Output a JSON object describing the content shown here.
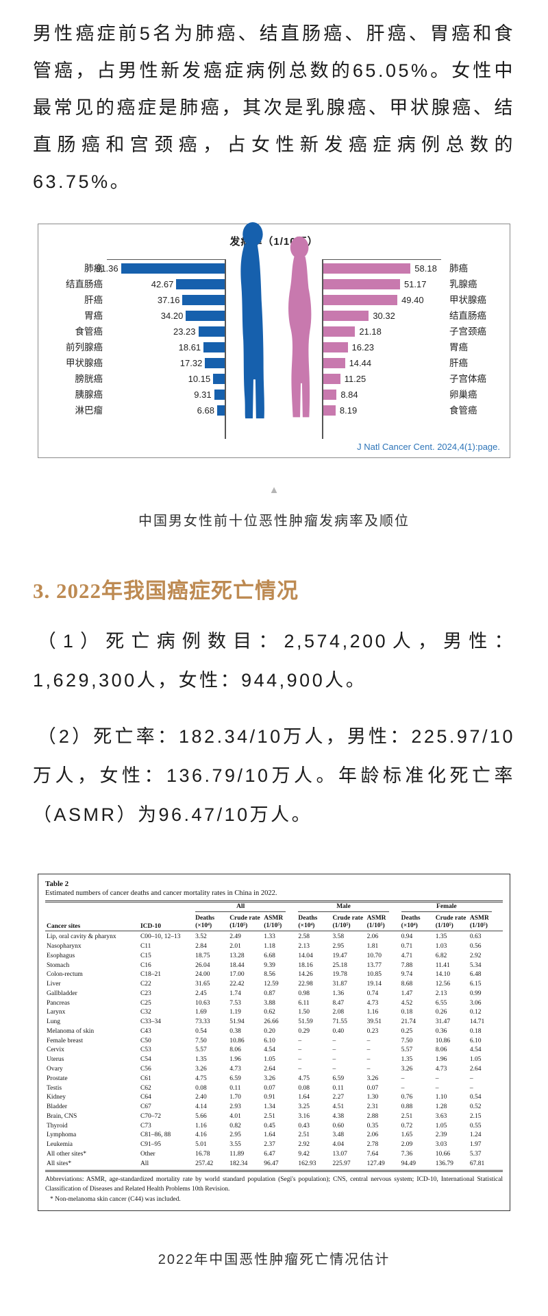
{
  "page": {
    "intro_paragraph": "男性癌症前5名为肺癌、结直肠癌、肝癌、胃癌和食管癌，占男性新发癌症病例总数的65.05%。女性中最常见的癌症是肺癌，其次是乳腺癌、甲状腺癌、结直肠癌和宫颈癌，占女性新发癌症病例总数的63.75%。",
    "triangle_marker": "▲",
    "chart_caption": "中国男女性前十位恶性肿瘤发病率及顺位",
    "section_heading": "3. 2022年我国癌症死亡情况",
    "paragraphs": [
      "（1）死亡病例数目：2,574,200人，男性：1,629,300人，女性：944,900人。",
      "（2）死亡率：182.34/10万人，男性：225.97/10万人，女性：136.79/10万人。年龄标准化死亡率（ASMR）为96.47/10万人。"
    ],
    "table_caption": "2022年中国恶性肿瘤死亡情况估计"
  },
  "chart_data": {
    "type": "bar",
    "orientation": "horizontal-mirrored",
    "title": "发病率（1/10万）",
    "unit": "1/10万",
    "source": "J Natl Cancer Cent. 2024,4(1):page.",
    "legend_position": "none",
    "male": {
      "label": "男性",
      "color": "#1660ad",
      "categories": [
        "肺癌",
        "结直肠癌",
        "肝癌",
        "胃癌",
        "食管癌",
        "前列腺癌",
        "甲状腺癌",
        "膀胱癌",
        "胰腺癌",
        "淋巴瘤"
      ],
      "values": [
        "91.36",
        "42.67",
        "37.16",
        "34.20",
        "23.23",
        "18.61",
        "17.32",
        "10.15",
        "9.31",
        "6.68"
      ]
    },
    "female": {
      "label": "女性",
      "color": "#c879ae",
      "categories": [
        "肺癌",
        "乳腺癌",
        "甲状腺癌",
        "结直肠癌",
        "子宫颈癌",
        "胃癌",
        "肝癌",
        "子宫体癌",
        "卵巢癌",
        "食管癌"
      ],
      "values": [
        "58.18",
        "51.17",
        "49.40",
        "30.32",
        "21.18",
        "16.23",
        "14.44",
        "11.25",
        "8.84",
        "8.19"
      ]
    }
  },
  "table": {
    "title": "Table 2",
    "subtitle": "Estimated numbers of cancer deaths and cancer mortality rates in China in 2022.",
    "col_site": "Cancer sites",
    "col_icd": "ICD-10",
    "groups": [
      "All",
      "Male",
      "Female"
    ],
    "sub_headers": [
      "Deaths\n(×10⁴)",
      "Crude rate\n(1/10⁵)",
      "ASMR\n(1/10⁵)"
    ],
    "rows": [
      [
        "Lip, oral cavity & pharynx",
        "C00–10, 12–13",
        "3.52",
        "2.49",
        "1.33",
        "2.58",
        "3.58",
        "2.06",
        "0.94",
        "1.35",
        "0.63"
      ],
      [
        "Nasopharynx",
        "C11",
        "2.84",
        "2.01",
        "1.18",
        "2.13",
        "2.95",
        "1.81",
        "0.71",
        "1.03",
        "0.56"
      ],
      [
        "Esophagus",
        "C15",
        "18.75",
        "13.28",
        "6.68",
        "14.04",
        "19.47",
        "10.70",
        "4.71",
        "6.82",
        "2.92"
      ],
      [
        "Stomach",
        "C16",
        "26.04",
        "18.44",
        "9.39",
        "18.16",
        "25.18",
        "13.77",
        "7.88",
        "11.41",
        "5.34"
      ],
      [
        "Colon-rectum",
        "C18–21",
        "24.00",
        "17.00",
        "8.56",
        "14.26",
        "19.78",
        "10.85",
        "9.74",
        "14.10",
        "6.48"
      ],
      [
        "Liver",
        "C22",
        "31.65",
        "22.42",
        "12.59",
        "22.98",
        "31.87",
        "19.14",
        "8.68",
        "12.56",
        "6.15"
      ],
      [
        "Gallbladder",
        "C23",
        "2.45",
        "1.74",
        "0.87",
        "0.98",
        "1.36",
        "0.74",
        "1.47",
        "2.13",
        "0.99"
      ],
      [
        "Pancreas",
        "C25",
        "10.63",
        "7.53",
        "3.88",
        "6.11",
        "8.47",
        "4.73",
        "4.52",
        "6.55",
        "3.06"
      ],
      [
        "Larynx",
        "C32",
        "1.69",
        "1.19",
        "0.62",
        "1.50",
        "2.08",
        "1.16",
        "0.18",
        "0.26",
        "0.12"
      ],
      [
        "Lung",
        "C33–34",
        "73.33",
        "51.94",
        "26.66",
        "51.59",
        "71.55",
        "39.51",
        "21.74",
        "31.47",
        "14.71"
      ],
      [
        "Melanoma of skin",
        "C43",
        "0.54",
        "0.38",
        "0.20",
        "0.29",
        "0.40",
        "0.23",
        "0.25",
        "0.36",
        "0.18"
      ],
      [
        "Female breast",
        "C50",
        "7.50",
        "10.86",
        "6.10",
        "–",
        "–",
        "–",
        "7.50",
        "10.86",
        "6.10"
      ],
      [
        "Cervix",
        "C53",
        "5.57",
        "8.06",
        "4.54",
        "–",
        "–",
        "–",
        "5.57",
        "8.06",
        "4.54"
      ],
      [
        "Uterus",
        "C54",
        "1.35",
        "1.96",
        "1.05",
        "–",
        "–",
        "–",
        "1.35",
        "1.96",
        "1.05"
      ],
      [
        "Ovary",
        "C56",
        "3.26",
        "4.73",
        "2.64",
        "–",
        "–",
        "–",
        "3.26",
        "4.73",
        "2.64"
      ],
      [
        "Prostate",
        "C61",
        "4.75",
        "6.59",
        "3.26",
        "4.75",
        "6.59",
        "3.26",
        "–",
        "–",
        "–"
      ],
      [
        "Testis",
        "C62",
        "0.08",
        "0.11",
        "0.07",
        "0.08",
        "0.11",
        "0.07",
        "–",
        "–",
        "–"
      ],
      [
        "Kidney",
        "C64",
        "2.40",
        "1.70",
        "0.91",
        "1.64",
        "2.27",
        "1.30",
        "0.76",
        "1.10",
        "0.54"
      ],
      [
        "Bladder",
        "C67",
        "4.14",
        "2.93",
        "1.34",
        "3.25",
        "4.51",
        "2.31",
        "0.88",
        "1.28",
        "0.52"
      ],
      [
        "Brain, CNS",
        "C70–72",
        "5.66",
        "4.01",
        "2.51",
        "3.16",
        "4.38",
        "2.88",
        "2.51",
        "3.63",
        "2.15"
      ],
      [
        "Thyroid",
        "C73",
        "1.16",
        "0.82",
        "0.45",
        "0.43",
        "0.60",
        "0.35",
        "0.72",
        "1.05",
        "0.55"
      ],
      [
        "Lymphoma",
        "C81–86, 88",
        "4.16",
        "2.95",
        "1.64",
        "2.51",
        "3.48",
        "2.06",
        "1.65",
        "2.39",
        "1.24"
      ],
      [
        "Leukemia",
        "C91–95",
        "5.01",
        "3.55",
        "2.37",
        "2.92",
        "4.04",
        "2.78",
        "2.09",
        "3.03",
        "1.97"
      ],
      [
        "All other sites*",
        "Other",
        "16.78",
        "11.89",
        "6.47",
        "9.42",
        "13.07",
        "7.64",
        "7.36",
        "10.66",
        "5.37"
      ],
      [
        "All sites*",
        "All",
        "257.42",
        "182.34",
        "96.47",
        "162.93",
        "225.97",
        "127.49",
        "94.49",
        "136.79",
        "67.81"
      ]
    ],
    "footnotes": [
      "Abbreviations: ASMR, age-standardized mortality rate by world standard population (Segi's population); CNS, central nervous system; ICD-10, International Statistical Classification of Diseases and Related Health Problems 10th Revision.",
      "* Non-melanoma skin cancer (C44) was included."
    ]
  }
}
